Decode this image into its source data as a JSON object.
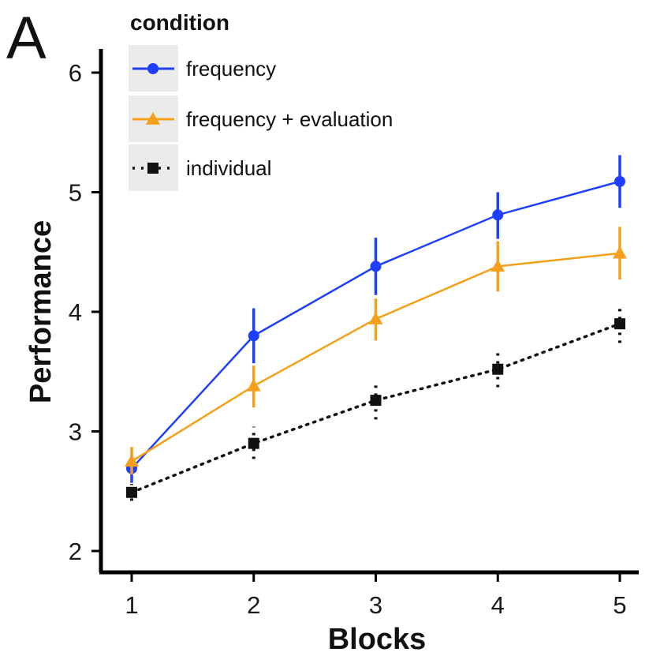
{
  "panel_label": "A",
  "chart_data": {
    "type": "line",
    "title": "",
    "xlabel": "Blocks",
    "ylabel": "Performance",
    "x": [
      1,
      2,
      3,
      4,
      5
    ],
    "xticks": [
      "1",
      "2",
      "3",
      "4",
      "5"
    ],
    "yticks": [
      "2",
      "3",
      "4",
      "5",
      "6"
    ],
    "ylim": [
      2,
      6
    ],
    "xlim": [
      1,
      5
    ],
    "grid": false,
    "legend": {
      "title": "condition",
      "placement": "top-left"
    },
    "series": [
      {
        "name": "frequency",
        "color": "#1f3fff",
        "marker": "circle",
        "linestyle": "solid",
        "values": [
          2.69,
          3.8,
          4.38,
          4.81,
          5.09
        ],
        "err_low": [
          2.57,
          3.57,
          4.14,
          4.61,
          4.87
        ],
        "err_high": [
          2.81,
          4.03,
          4.62,
          5.0,
          5.31
        ]
      },
      {
        "name": "frequency + evaluation",
        "color": "#f5a01a",
        "marker": "triangle",
        "linestyle": "solid",
        "values": [
          2.75,
          3.38,
          3.94,
          4.38,
          4.49
        ],
        "err_low": [
          2.64,
          3.2,
          3.76,
          4.17,
          4.27
        ],
        "err_high": [
          2.87,
          3.55,
          4.11,
          4.59,
          4.71
        ]
      },
      {
        "name": "individual",
        "color": "#111111",
        "marker": "square",
        "linestyle": "dotted",
        "values": [
          2.49,
          2.9,
          3.26,
          3.52,
          3.9
        ],
        "err_low": [
          2.42,
          2.77,
          3.1,
          3.37,
          3.74
        ],
        "err_high": [
          2.56,
          3.04,
          3.42,
          3.68,
          4.06
        ]
      }
    ]
  }
}
